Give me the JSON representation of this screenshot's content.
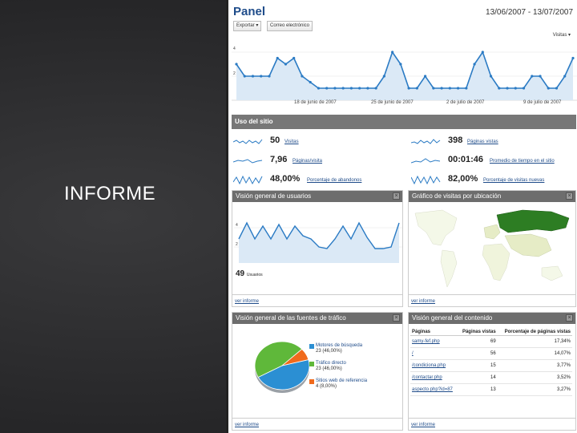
{
  "slide": {
    "title": "INFORME"
  },
  "header": {
    "title": "Panel",
    "date_range": "13/06/2007 - 13/07/2007",
    "export_label": "Exportar ▾",
    "email_label": "Correo electrónico",
    "visits_selector": "Visitas ▾"
  },
  "main_chart": {
    "y_ticks": [
      "4",
      "2"
    ],
    "x_labels": [
      "18 de junio de 2007",
      "25 de junio de 2007",
      "2 de julio de 2007",
      "9 de julio de 2007"
    ]
  },
  "chart_data": {
    "type": "area",
    "series": [
      {
        "values": [
          3,
          2,
          2,
          2,
          2,
          3.5,
          3,
          3.5,
          2,
          1.5,
          1,
          1,
          1,
          1,
          1,
          1,
          1,
          1,
          2,
          4,
          3,
          1,
          1,
          2,
          1,
          1,
          1,
          1,
          1,
          3,
          4,
          2,
          1,
          1,
          1,
          1,
          2,
          2,
          1,
          1,
          2,
          3.5
        ]
      }
    ],
    "ylim": [
      0,
      4
    ]
  },
  "usage": {
    "title": "Uso del sitio",
    "metrics": [
      {
        "value": "50",
        "label": "Visitas"
      },
      {
        "value": "7,96",
        "label": "Páginas/visita"
      },
      {
        "value": "48,00%",
        "label": "Porcentaje de abandonos"
      },
      {
        "value": "398",
        "label": "Páginas vistas"
      },
      {
        "value": "00:01:46",
        "label": "Promedio de tiempo en el sitio"
      },
      {
        "value": "82,00%",
        "label": "Porcentaje de visitas nuevas"
      }
    ]
  },
  "users_panel": {
    "title": "Visión general de usuarios",
    "y_ticks": [
      "4",
      "2"
    ],
    "total": "49",
    "total_label": "Usuarios",
    "link": "ver informe"
  },
  "map_panel": {
    "title": "Gráfico de visitas por ubicación",
    "link": "ver informe"
  },
  "traffic_panel": {
    "title": "Visión general de las fuentes de tráfico",
    "link": "ver informe",
    "sources": [
      {
        "name": "Motores de búsqueda",
        "sub": "23 (46,00%)",
        "color": "#2b8fd3",
        "pct": 46
      },
      {
        "name": "Tráfico directo",
        "sub": "23 (46,00%)",
        "color": "#5fb83a",
        "pct": 46
      },
      {
        "name": "Sitios web de referencia",
        "sub": "4 (8,00%)",
        "color": "#f06a1c",
        "pct": 8
      }
    ]
  },
  "content_panel": {
    "title": "Visión general del contenido",
    "link": "ver informe",
    "columns": [
      "Páginas",
      "Páginas vistas",
      "Porcentaje de páginas vistas"
    ],
    "rows": [
      {
        "page": "samy-fef.php",
        "views": "69",
        "pct": "17,34%"
      },
      {
        "page": "/",
        "views": "56",
        "pct": "14,07%"
      },
      {
        "page": "/condiciona.php",
        "views": "15",
        "pct": "3,77%"
      },
      {
        "page": "/contactar.php",
        "views": "14",
        "pct": "3,52%"
      },
      {
        "page": "aspecto.php?id=87",
        "views": "13",
        "pct": "3,27%"
      }
    ]
  }
}
